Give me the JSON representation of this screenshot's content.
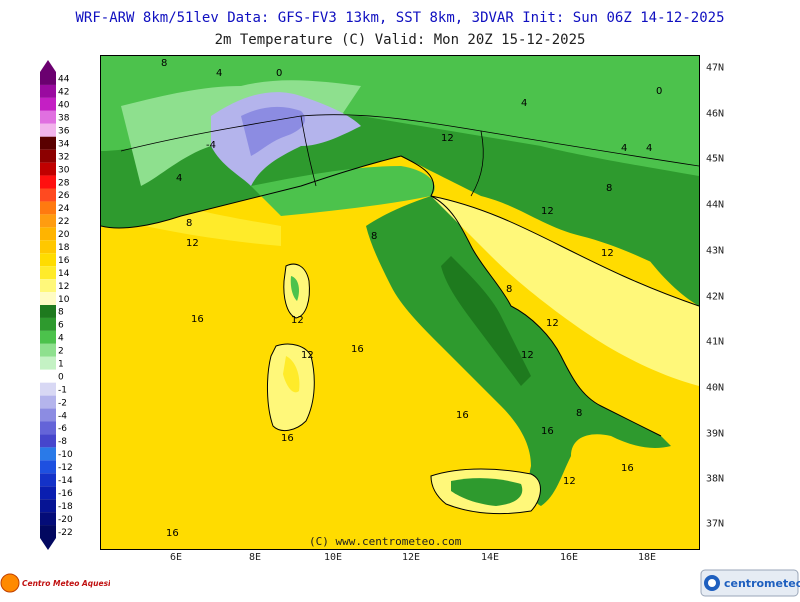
{
  "header": {
    "line1": "WRF-ARW 8km/51lev  Data: GFS-FV3 13km, SST 8km, 3DVAR  Init: Sun 06Z 14-12-2025",
    "line2": "2m Temperature (C)  Valid: Mon 20Z 15-12-2025"
  },
  "legend": [
    {
      "v": "44",
      "c": "#6b0070"
    },
    {
      "v": "42",
      "c": "#9a0aa0"
    },
    {
      "v": "40",
      "c": "#c41fc4"
    },
    {
      "v": "38",
      "c": "#e070e0"
    },
    {
      "v": "36",
      "c": "#f2b4ec"
    },
    {
      "v": "34",
      "c": "#5a0000"
    },
    {
      "v": "32",
      "c": "#8c0000"
    },
    {
      "v": "30",
      "c": "#c00000"
    },
    {
      "v": "28",
      "c": "#ff1010"
    },
    {
      "v": "26",
      "c": "#ff4a20"
    },
    {
      "v": "24",
      "c": "#ff7a10"
    },
    {
      "v": "22",
      "c": "#ff9c10"
    },
    {
      "v": "20",
      "c": "#ffb400"
    },
    {
      "v": "18",
      "c": "#ffc800"
    },
    {
      "v": "16",
      "c": "#ffdc00"
    },
    {
      "v": "14",
      "c": "#ffeb2a"
    },
    {
      "v": "12",
      "c": "#fff87a"
    },
    {
      "v": "10",
      "c": "#fffcc4"
    },
    {
      "v": "8",
      "c": "#1e7a1e"
    },
    {
      "v": "6",
      "c": "#2e9a2e"
    },
    {
      "v": "4",
      "c": "#4cc24c"
    },
    {
      "v": "2",
      "c": "#8ee08e"
    },
    {
      "v": "1",
      "c": "#c4f2c4"
    },
    {
      "v": "0",
      "c": "#ffffff"
    },
    {
      "v": "-1",
      "c": "#d8d8f4"
    },
    {
      "v": "-2",
      "c": "#b4b4ec"
    },
    {
      "v": "-4",
      "c": "#8c8ce2"
    },
    {
      "v": "-6",
      "c": "#6464d8"
    },
    {
      "v": "-8",
      "c": "#4646cc"
    },
    {
      "v": "-10",
      "c": "#2a7ae8"
    },
    {
      "v": "-12",
      "c": "#1e50e0"
    },
    {
      "v": "-14",
      "c": "#1432c8"
    },
    {
      "v": "-16",
      "c": "#0a1eb0"
    },
    {
      "v": "-18",
      "c": "#061494"
    },
    {
      "v": "-20",
      "c": "#040c78"
    },
    {
      "v": "-22",
      "c": "#020860"
    }
  ],
  "axes": {
    "lon": [
      "6E",
      "8E",
      "10E",
      "12E",
      "14E",
      "16E",
      "18E"
    ],
    "lat": [
      "47N",
      "46N",
      "45N",
      "44N",
      "43N",
      "42N",
      "41N",
      "40N",
      "39N",
      "38N",
      "37N"
    ]
  },
  "map_labels": [
    "16",
    "16",
    "16",
    "12",
    "12",
    "12",
    "8",
    "8",
    "4",
    "4",
    "0",
    "-4",
    "12",
    "12",
    "12",
    "16",
    "16",
    "16",
    "8",
    "8",
    "8",
    "4",
    "4",
    "12",
    "12",
    "12",
    "16",
    "8",
    "4",
    "0"
  ],
  "credit": "(C) www.centrometeo.com",
  "logos": {
    "left": "Centro Meteo Aquesio",
    "right": "centrometeo"
  }
}
